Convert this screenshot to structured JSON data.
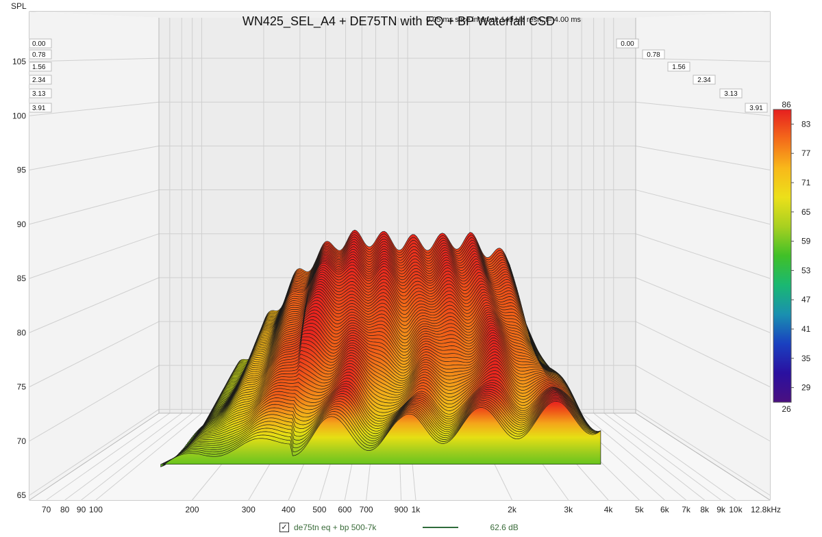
{
  "window": {
    "title": "WN425_SEL_A4 + DE75TN with EQ + BP Waterfall CSD",
    "subtitle": "0.05 ms slice interval, 143 Hz resn, t= 4.00 ms"
  },
  "legend": {
    "checkbox_checked": true,
    "checkmark": "✓",
    "name": "de75tn eq + bp 500-7k",
    "line_color": "#2e6b3a",
    "value": "62.6 dB"
  },
  "colorbar": {
    "max_label": "86",
    "min_label": "26",
    "ticks": [
      "83",
      "77",
      "71",
      "65",
      "59",
      "53",
      "47",
      "41",
      "35",
      "29"
    ],
    "stops": [
      "#e61f1f",
      "#f46a1a",
      "#f8b81a",
      "#ece01a",
      "#a8d020",
      "#40c028",
      "#1ab872",
      "#1a90b0",
      "#1a40c0",
      "#2a10a0",
      "#4a1080"
    ]
  },
  "chart_data": {
    "type": "area",
    "title": "WN425_SEL_A4 + DE75TN with EQ + BP Waterfall CSD",
    "subtitle": "0.05 ms slice interval, 143 Hz resn, t= 4.00 ms",
    "ylabel": "SPL",
    "xlabel": "",
    "y_ticks": [
      "105",
      "100",
      "95",
      "90",
      "85",
      "80",
      "75",
      "70",
      "65"
    ],
    "x_ticks": [
      "70",
      "80",
      "90",
      "100",
      "200",
      "300",
      "400",
      "500",
      "600",
      "700",
      "900",
      "1k",
      "2k",
      "3k",
      "4k",
      "5k",
      "6k",
      "7k",
      "8k",
      "9k",
      "10k",
      "12.8kHz"
    ],
    "ylim": [
      65,
      108
    ],
    "x_scale": "log",
    "slice_labels": [
      "0.00",
      "0.78",
      "1.56",
      "2.34",
      "3.13",
      "3.91"
    ],
    "grid": true,
    "series": [
      {
        "name": "de75tn eq + bp 500-7k",
        "slice_ms": [
          0.0,
          0.78,
          1.56,
          2.34,
          3.13,
          3.91
        ],
        "freq_hz": [
          150,
          200,
          300,
          400,
          500,
          600,
          700,
          900,
          1000,
          2000,
          3000,
          4000
        ],
        "spl_db": [
          [
            71.5,
            76.5,
            83.5,
            87.0,
            88.5,
            89.0,
            89.0,
            88.8,
            88.5,
            88.8,
            86.5,
            74.0
          ],
          [
            70.5,
            75.0,
            81.5,
            85.0,
            86.0,
            86.0,
            85.5,
            85.0,
            84.5,
            85.5,
            83.0,
            73.0
          ],
          [
            69.8,
            73.5,
            79.0,
            82.0,
            82.5,
            82.0,
            81.0,
            80.5,
            80.0,
            81.5,
            79.5,
            72.5
          ],
          [
            69.0,
            72.0,
            76.5,
            78.5,
            78.5,
            78.0,
            77.0,
            76.5,
            76.0,
            78.0,
            77.0,
            72.5
          ],
          [
            68.5,
            70.5,
            73.5,
            74.5,
            74.5,
            74.0,
            73.5,
            73.0,
            73.0,
            74.5,
            74.0,
            72.5
          ],
          [
            68.0,
            69.0,
            70.0,
            70.5,
            71.0,
            71.0,
            71.0,
            71.0,
            71.5,
            72.0,
            72.5,
            72.5
          ]
        ]
      }
    ]
  }
}
